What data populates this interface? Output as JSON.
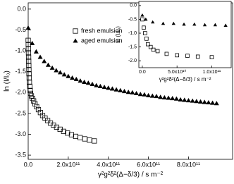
{
  "chart_data": [
    {
      "type": "scatter",
      "x_label": "γ²g²δ²(Δ−δ/3) / s m⁻²",
      "y_label": "ln (I/I₀)",
      "xlim": [
        0,
        1020000000000.0
      ],
      "ylim": [
        -3.6,
        0.15
      ],
      "xticks": [
        {
          "value": 0,
          "label": "0.0"
        },
        {
          "value": 200000000000.0,
          "label": "2.0x10¹¹"
        },
        {
          "value": 400000000000.0,
          "label": "4.0x10¹¹"
        },
        {
          "value": 600000000000.0,
          "label": "6.0x10¹¹"
        },
        {
          "value": 800000000000.0,
          "label": "8.0x10¹¹"
        }
      ],
      "yticks": [
        {
          "value": 0,
          "label": "0.0"
        },
        -0.5,
        {
          "value": -1,
          "label": "-1.0"
        },
        -1.5,
        {
          "value": -2,
          "label": "-2.0"
        },
        -2.5,
        {
          "value": -3,
          "label": "-3.0"
        },
        -3.5
      ],
      "legend": "upper left",
      "series": [
        {
          "name": "fresh emulsion",
          "color": "#000000",
          "marker": "open-square",
          "x": [
            0,
            500000000.0,
            1000000000.0,
            1500000000.0,
            2000000000.0,
            2500000000.0,
            3000000000.0,
            3500000000.0,
            4000000000.0,
            5000000000.0,
            6000000000.0,
            8000000000.0,
            10000000000.0,
            12000000000.0,
            16000000000.0,
            21000000000.0,
            27000000000.0,
            34000000000.0,
            42000000000.0,
            51000000000.0,
            61000000000.0,
            72000000000.0,
            84000000000.0,
            97000000000.0,
            111000000000.0,
            126000000000.0,
            142000000000.0,
            159000000000.0,
            177000000000.0,
            196000000000.0,
            216000000000.0,
            237000000000.0,
            259000000000.0,
            282000000000.0,
            306000000000.0,
            330000000000.0
          ],
          "values": [
            -0.75,
            -0.85,
            -0.95,
            -1.05,
            -1.15,
            -1.25,
            -1.35,
            -1.45,
            -1.55,
            -1.65,
            -1.75,
            -1.85,
            -1.95,
            -2.02,
            -2.08,
            -2.14,
            -2.2,
            -2.27,
            -2.34,
            -2.41,
            -2.48,
            -2.55,
            -2.61,
            -2.67,
            -2.73,
            -2.78,
            -2.83,
            -2.88,
            -2.93,
            -2.97,
            -3.01,
            -3.05,
            -3.08,
            -3.11,
            -3.14,
            -3.16
          ]
        },
        {
          "name": "aged emulsion",
          "color": "#000000",
          "marker": "filled-triangle",
          "x": [
            0,
            20000000000.0,
            40000000000.0,
            60000000000.0,
            80000000000.0,
            100000000000.0,
            120000000000.0,
            140000000000.0,
            160000000000.0,
            180000000000.0,
            200000000000.0,
            220000000000.0,
            240000000000.0,
            260000000000.0,
            280000000000.0,
            300000000000.0,
            320000000000.0,
            340000000000.0,
            360000000000.0,
            380000000000.0,
            400000000000.0,
            420000000000.0,
            440000000000.0,
            460000000000.0,
            480000000000.0,
            500000000000.0,
            520000000000.0,
            540000000000.0,
            560000000000.0,
            580000000000.0,
            600000000000.0,
            620000000000.0,
            640000000000.0,
            660000000000.0,
            680000000000.0,
            700000000000.0,
            720000000000.0,
            740000000000.0,
            760000000000.0,
            780000000000.0,
            800000000000.0,
            820000000000.0,
            840000000000.0,
            860000000000.0,
            880000000000.0,
            900000000000.0,
            920000000000.0,
            940000000000.0
          ],
          "values": [
            -0.45,
            -0.82,
            -1.02,
            -1.15,
            -1.25,
            -1.34,
            -1.41,
            -1.47,
            -1.52,
            -1.57,
            -1.61,
            -1.65,
            -1.68,
            -1.72,
            -1.75,
            -1.77,
            -1.8,
            -1.83,
            -1.85,
            -1.87,
            -1.89,
            -1.91,
            -1.93,
            -1.95,
            -1.97,
            -1.99,
            -2.0,
            -2.02,
            -2.04,
            -2.05,
            -2.07,
            -2.08,
            -2.09,
            -2.11,
            -2.12,
            -2.13,
            -2.14,
            -2.15,
            -2.17,
            -2.18,
            -2.19,
            -2.2,
            -2.21,
            -2.22,
            -2.23,
            -2.24,
            -2.25,
            -2.26
          ]
        }
      ]
    },
    {
      "type": "scatter",
      "x_label": "γ²g²δ²(Δ−δ/3) / s m⁻²",
      "y_label": "ln (I/I₀)",
      "xlim": [
        -5000000000.0,
        128000000000.0
      ],
      "ylim": [
        -2.25,
        0.15
      ],
      "xticks": [
        {
          "value": 0,
          "label": "0.0"
        },
        {
          "value": 50000000000.0,
          "label": "5.0x10¹⁰"
        },
        {
          "value": 100000000000.0,
          "label": "1.0x10¹¹"
        }
      ],
      "yticks": [
        {
          "value": 0,
          "label": "0.0"
        },
        -0.5,
        {
          "value": -1,
          "label": "-1.0"
        },
        -1.5,
        {
          "value": -2,
          "label": "-2.0"
        }
      ],
      "series": [
        {
          "name": "fresh emulsion",
          "color": "#000000",
          "marker": "open-square",
          "x": [
            0,
            2000000000.0,
            4000000000.0,
            6000000000.0,
            8000000000.0,
            12000000000.0,
            16000000000.0,
            22000000000.0,
            35000000000.0,
            50000000000.0,
            65000000000.0,
            80000000000.0,
            100000000000.0
          ],
          "values": [
            -0.5,
            -0.8,
            -1.0,
            -1.2,
            -1.4,
            -1.5,
            -1.6,
            -1.65,
            -1.75,
            -1.8,
            -1.82,
            -1.85,
            -1.87
          ]
        },
        {
          "name": "aged emulsion",
          "color": "#000000",
          "marker": "filled-triangle",
          "x": [
            0,
            5000000000.0,
            15000000000.0,
            30000000000.0,
            45000000000.0,
            60000000000.0,
            75000000000.0,
            90000000000.0,
            105000000000.0,
            120000000000.0
          ],
          "values": [
            -0.35,
            -0.5,
            -0.6,
            -0.65,
            -0.65,
            -0.68,
            -0.68,
            -0.7,
            -0.7,
            -0.72
          ]
        }
      ]
    }
  ]
}
